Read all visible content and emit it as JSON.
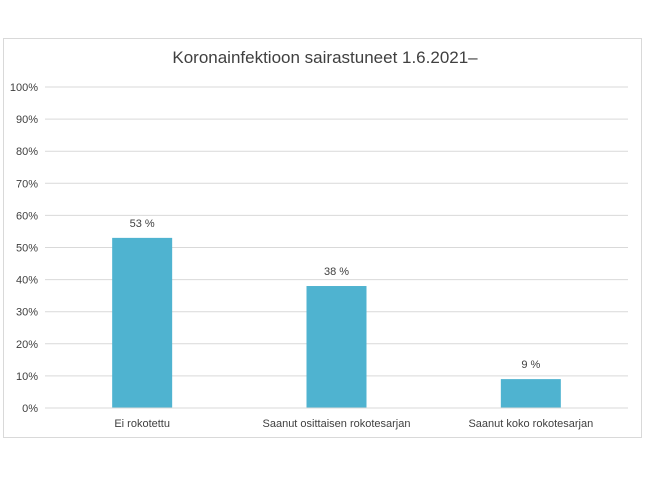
{
  "chart_data": {
    "type": "bar",
    "title": "Koronainfektioon sairastuneet 1.6.2021–",
    "categories": [
      "Ei rokotettu",
      "Saanut osittaisen rokotesarjan",
      "Saanut koko rokotesarjan"
    ],
    "values": [
      53,
      38,
      9
    ],
    "data_labels": [
      "53 %",
      "38 %",
      "9 %"
    ],
    "ylim": [
      0,
      100
    ],
    "yticks": [
      "0%",
      "10%",
      "20%",
      "30%",
      "40%",
      "50%",
      "60%",
      "70%",
      "80%",
      "90%",
      "100%"
    ],
    "grid": true,
    "bar_color": "#4fb3d0",
    "xlabel": "",
    "ylabel": ""
  }
}
